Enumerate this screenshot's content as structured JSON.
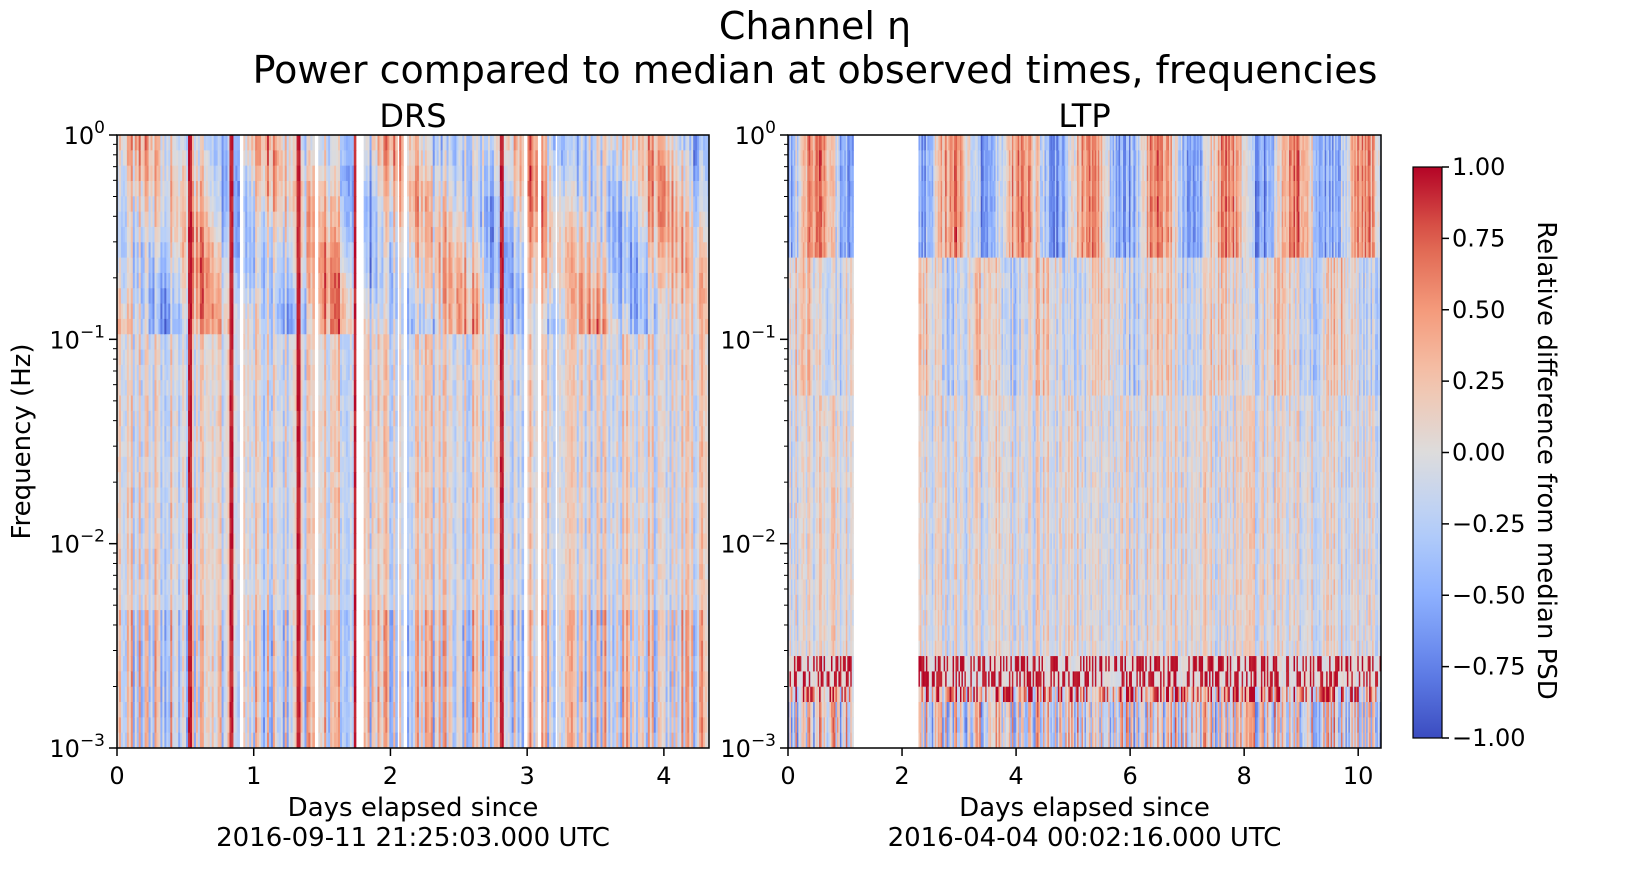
{
  "suptitle": {
    "line1": "Channel η",
    "line2": "Power compared to median at observed times, frequencies"
  },
  "chart_data": [
    {
      "type": "heatmap",
      "title": "DRS",
      "xlabel_line1": "Days elapsed since",
      "xlabel_line2": "2016-09-11 21:25:03.000 UTC",
      "ylabel": "Frequency (Hz)",
      "xlim": [
        0,
        4.33
      ],
      "ylim": [
        0.001,
        1
      ],
      "yscale": "log",
      "xticks": [
        0,
        1,
        2,
        3,
        4
      ],
      "yticks": [
        {
          "value": 1,
          "label": "10",
          "exp": "0"
        },
        {
          "value": 0.1,
          "label": "10",
          "exp": "−1"
        },
        {
          "value": 0.01,
          "label": "10",
          "exp": "−2"
        },
        {
          "value": 0.001,
          "label": "10",
          "exp": "−3"
        }
      ],
      "gaps_days": [
        [
          0.9,
          0.92
        ],
        [
          1.45,
          1.47
        ],
        [
          1.75,
          1.8
        ],
        [
          2.05,
          2.07
        ],
        [
          2.1,
          2.12
        ],
        [
          2.98,
          3.0
        ],
        [
          3.08,
          3.1
        ],
        [
          3.2,
          3.22
        ]
      ],
      "strong_lines_days": [
        0.53,
        0.84,
        1.33,
        1.75,
        2.82
      ]
    },
    {
      "type": "heatmap",
      "title": "LTP",
      "xlabel_line1": "Days elapsed since",
      "xlabel_line2": "2016-04-04 00:02:16.000 UTC",
      "ylabel": "",
      "xlim": [
        0,
        10.4
      ],
      "ylim": [
        0.001,
        1
      ],
      "yscale": "log",
      "xticks": [
        0,
        2,
        4,
        6,
        8,
        10
      ],
      "yticks": [
        {
          "value": 1,
          "label": "10",
          "exp": "0"
        },
        {
          "value": 0.1,
          "label": "10",
          "exp": "−1"
        },
        {
          "value": 0.01,
          "label": "10",
          "exp": "−2"
        },
        {
          "value": 0.001,
          "label": "10",
          "exp": "−3"
        }
      ],
      "gaps_days": [
        [
          1.15,
          2.3
        ]
      ],
      "oscillation_period_days": 1.2,
      "band_frequency_hz": [
        0.0018,
        0.003
      ]
    }
  ],
  "colorbar": {
    "label": "Relative difference from median PSD",
    "range": [
      -1,
      1
    ],
    "colormap": "coolwarm",
    "ticks": [
      {
        "value": 1.0,
        "label": "1.00"
      },
      {
        "value": 0.75,
        "label": "0.75"
      },
      {
        "value": 0.5,
        "label": "0.50"
      },
      {
        "value": 0.25,
        "label": "0.25"
      },
      {
        "value": 0.0,
        "label": "0.00"
      },
      {
        "value": -0.25,
        "label": "−0.25"
      },
      {
        "value": -0.5,
        "label": "−0.50"
      },
      {
        "value": -0.75,
        "label": "−0.75"
      },
      {
        "value": -1.0,
        "label": "−1.00"
      }
    ],
    "colors": {
      "min": "#3b4cc0",
      "mid": "#dddcdc",
      "max": "#b40426"
    }
  }
}
